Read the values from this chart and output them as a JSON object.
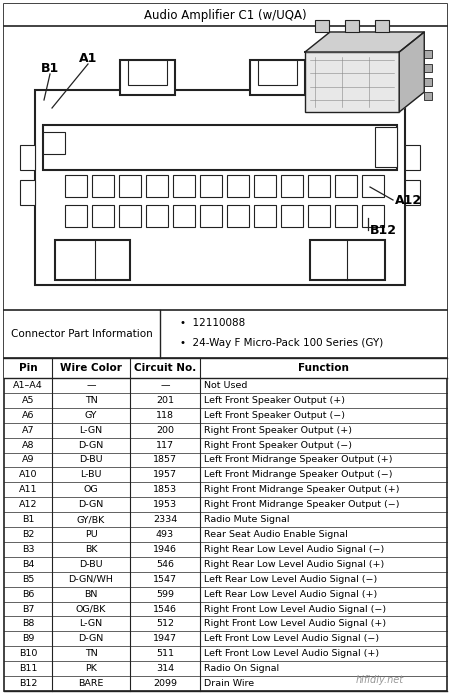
{
  "title": "Audio Amplifier C1 (w/UQA)",
  "connector_info_label": "Connector Part Information",
  "connector_bullets": [
    "12110088",
    "24-Way F Micro-Pack 100 Series (GY)"
  ],
  "col_headers": [
    "Pin",
    "Wire Color",
    "Circuit No.",
    "Function"
  ],
  "rows": [
    [
      "A1–A4",
      "—",
      "—",
      "Not Used"
    ],
    [
      "A5",
      "TN",
      "201",
      "Left Front Speaker Output (+)"
    ],
    [
      "A6",
      "GY",
      "118",
      "Left Front Speaker Output (−)"
    ],
    [
      "A7",
      "L-GN",
      "200",
      "Right Front Speaker Output (+)"
    ],
    [
      "A8",
      "D-GN",
      "117",
      "Right Front Speaker Output (−)"
    ],
    [
      "A9",
      "D-BU",
      "1857",
      "Left Front Midrange Speaker Output (+)"
    ],
    [
      "A10",
      "L-BU",
      "1957",
      "Left Front Midrange Speaker Output (−)"
    ],
    [
      "A11",
      "OG",
      "1853",
      "Right Front Midrange Speaker Output (+)"
    ],
    [
      "A12",
      "D-GN",
      "1953",
      "Right Front Midrange Speaker Output (−)"
    ],
    [
      "B1",
      "GY/BK",
      "2334",
      "Radio Mute Signal"
    ],
    [
      "B2",
      "PU",
      "493",
      "Rear Seat Audio Enable Signal"
    ],
    [
      "B3",
      "BK",
      "1946",
      "Right Rear Low Level Audio Signal (−)"
    ],
    [
      "B4",
      "D-BU",
      "546",
      "Right Rear Low Level Audio Signal (+)"
    ],
    [
      "B5",
      "D-GN/WH",
      "1547",
      "Left Rear Low Level Audio Signal (−)"
    ],
    [
      "B6",
      "BN",
      "599",
      "Left Rear Low Level Audio Signal (+)"
    ],
    [
      "B7",
      "OG/BK",
      "1546",
      "Right Front Low Level Audio Signal (−)"
    ],
    [
      "B8",
      "L-GN",
      "512",
      "Right Front Low Level Audio Signal (+)"
    ],
    [
      "B9",
      "D-GN",
      "1947",
      "Left Front Low Level Audio Signal (−)"
    ],
    [
      "B10",
      "TN",
      "511",
      "Left Front Low Level Audio Signal (+)"
    ],
    [
      "B11",
      "PK",
      "314",
      "Radio On Signal"
    ],
    [
      "B12",
      "BARE",
      "2099",
      "Drain Wire"
    ]
  ],
  "watermark": "hifidiy.net",
  "bg_color": "#ffffff",
  "border_color": "#000000",
  "fig_width": 4.51,
  "fig_height": 6.95
}
